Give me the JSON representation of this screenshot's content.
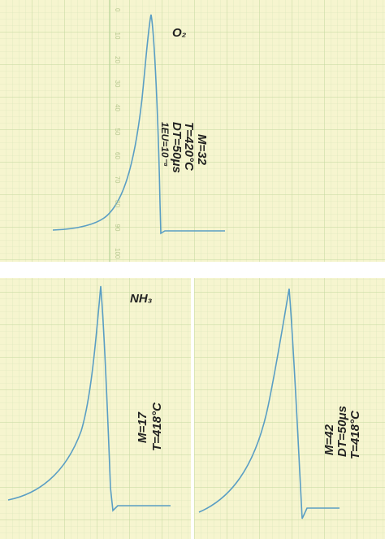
{
  "panels": [
    {
      "label": "O₂",
      "annotations": [
        "M=32",
        "T=420°C",
        "DT=50μs",
        "1EU=10⁻⁸"
      ],
      "axis_labels": [
        "0",
        "10",
        "20",
        "30",
        "40",
        "50",
        "60",
        "70",
        "80",
        "90",
        "100"
      ]
    },
    {
      "label": "NH₃",
      "annotations": [
        "M=17",
        "T=418°C"
      ]
    },
    {
      "annotations": [
        "M=42",
        "DT=50μs",
        "T=418°C"
      ]
    }
  ]
}
